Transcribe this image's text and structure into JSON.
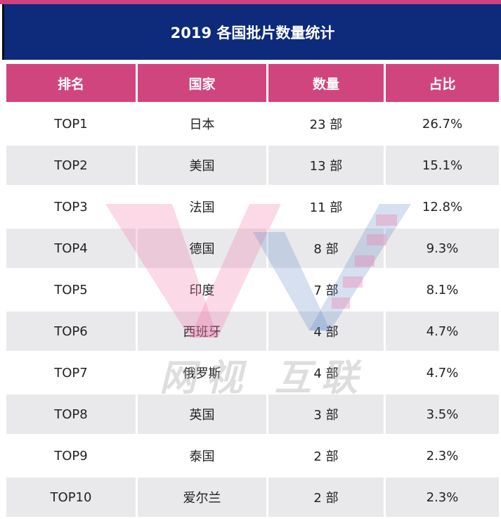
{
  "title": "2019 各国批片数量统计",
  "columns": [
    "排名",
    "国家",
    "数量",
    "占比"
  ],
  "rows": [
    {
      "rank": "TOP1",
      "country": "日本",
      "count": "23 部",
      "share": "26.7%"
    },
    {
      "rank": "TOP2",
      "country": "美国",
      "count": "13 部",
      "share": "15.1%"
    },
    {
      "rank": "TOP3",
      "country": "法国",
      "count": "11 部",
      "share": "12.8%"
    },
    {
      "rank": "TOP4",
      "country": "德国",
      "count": "8 部",
      "share": "9.3%"
    },
    {
      "rank": "TOP5",
      "country": "印度",
      "count": "7 部",
      "share": "8.1%"
    },
    {
      "rank": "TOP6",
      "country": "西班牙",
      "count": "4 部",
      "share": "4.7%"
    },
    {
      "rank": "TOP7",
      "country": "俄罗斯",
      "count": "4 部",
      "share": "4.7%"
    },
    {
      "rank": "TOP8",
      "country": "英国",
      "count": "3 部",
      "share": "3.5%"
    },
    {
      "rank": "TOP9",
      "country": "泰国",
      "count": "2 部",
      "share": "2.3%"
    },
    {
      "rank": "TOP10",
      "country": "爱尔兰",
      "count": "2 部",
      "share": "2.3%"
    }
  ],
  "watermark": {
    "text": "网视 互联"
  },
  "colors": {
    "title_bg": "#0d2a7b",
    "header_bg": "#d1457f",
    "row_alt": "#e9e9eb",
    "accent_top": "#d1407f"
  }
}
